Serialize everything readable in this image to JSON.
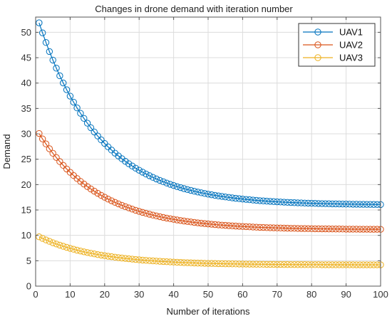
{
  "chart_data": {
    "type": "line",
    "title": "Changes in drone demand with iteration number",
    "xlabel": "Number of iterations",
    "ylabel": "Demand",
    "xlim": [
      0,
      100
    ],
    "ylim": [
      0,
      53
    ],
    "xticks": [
      0,
      10,
      20,
      30,
      40,
      50,
      60,
      70,
      80,
      90,
      100
    ],
    "yticks": [
      0,
      5,
      10,
      15,
      20,
      25,
      30,
      35,
      40,
      45,
      50
    ],
    "grid": true,
    "legend_position": "top-right",
    "marker": "open-circle",
    "x": [
      1,
      2,
      3,
      4,
      5,
      6,
      7,
      8,
      9,
      10,
      11,
      12,
      13,
      14,
      15,
      16,
      17,
      18,
      19,
      20,
      21,
      22,
      23,
      24,
      25,
      26,
      27,
      28,
      29,
      30,
      31,
      32,
      33,
      34,
      35,
      36,
      37,
      38,
      39,
      40,
      41,
      42,
      43,
      44,
      45,
      46,
      47,
      48,
      49,
      50,
      51,
      52,
      53,
      54,
      55,
      56,
      57,
      58,
      59,
      60,
      61,
      62,
      63,
      64,
      65,
      66,
      67,
      68,
      69,
      70,
      71,
      72,
      73,
      74,
      75,
      76,
      77,
      78,
      79,
      80,
      81,
      82,
      83,
      84,
      85,
      86,
      87,
      88,
      89,
      90,
      91,
      92,
      93,
      94,
      95,
      96,
      97,
      98,
      99,
      100
    ],
    "series": [
      {
        "name": "UAV1",
        "color": "#0072BD",
        "values": [
          51.86,
          49.89,
          47.99,
          46.21,
          44.53,
          42.94,
          41.44,
          40.02,
          38.69,
          37.43,
          36.24,
          35.11,
          34.05,
          33.05,
          32.1,
          31.21,
          30.37,
          29.57,
          28.82,
          28.11,
          27.44,
          26.8,
          26.2,
          25.64,
          25.1,
          24.59,
          24.11,
          23.66,
          23.23,
          22.83,
          22.45,
          22.09,
          21.75,
          21.42,
          21.12,
          20.83,
          20.56,
          20.3,
          20.06,
          19.83,
          19.61,
          19.41,
          19.21,
          19.03,
          18.86,
          18.69,
          18.54,
          18.39,
          18.25,
          18.12,
          18.0,
          17.88,
          17.77,
          17.67,
          17.57,
          17.48,
          17.39,
          17.3,
          17.23,
          17.15,
          17.08,
          17.02,
          16.95,
          16.9,
          16.84,
          16.79,
          16.74,
          16.7,
          16.65,
          16.61,
          16.57,
          16.54,
          16.5,
          16.47,
          16.44,
          16.42,
          16.39,
          16.36,
          16.34,
          16.32,
          16.3,
          16.28,
          16.26,
          16.24,
          16.23,
          16.21,
          16.2,
          16.19,
          16.17,
          16.16,
          16.15,
          16.14,
          16.13,
          16.12,
          16.11,
          16.1,
          16.1,
          16.09,
          16.08,
          16.07
        ]
      },
      {
        "name": "UAV2",
        "color": "#D95319",
        "values": [
          30.07,
          29.0,
          28.01,
          27.06,
          26.17,
          25.33,
          24.54,
          23.79,
          23.08,
          22.42,
          21.79,
          21.2,
          20.64,
          20.11,
          19.61,
          19.14,
          18.7,
          18.28,
          17.88,
          17.51,
          17.15,
          16.82,
          16.5,
          16.21,
          15.92,
          15.66,
          15.41,
          15.17,
          14.94,
          14.73,
          14.53,
          14.34,
          14.16,
          13.99,
          13.83,
          13.68,
          13.53,
          13.4,
          13.27,
          13.15,
          13.04,
          12.93,
          12.83,
          12.73,
          12.64,
          12.55,
          12.47,
          12.39,
          12.32,
          12.25,
          12.19,
          12.13,
          12.07,
          12.02,
          11.97,
          11.92,
          11.87,
          11.83,
          11.79,
          11.75,
          11.71,
          11.68,
          11.64,
          11.61,
          11.58,
          11.56,
          11.53,
          11.51,
          11.49,
          11.47,
          11.45,
          11.43,
          11.41,
          11.39,
          11.38,
          11.36,
          11.35,
          11.34,
          11.33,
          11.31,
          11.3,
          11.29,
          11.28,
          11.28,
          11.27,
          11.26,
          11.25,
          11.25,
          11.24,
          11.23,
          11.23,
          11.22,
          11.22,
          11.21,
          11.21,
          11.21,
          11.2,
          11.2,
          11.2,
          11.19
        ]
      },
      {
        "name": "UAV3",
        "color": "#EDB120",
        "values": [
          9.72,
          9.4,
          9.1,
          8.82,
          8.55,
          8.3,
          8.07,
          7.85,
          7.64,
          7.44,
          7.26,
          7.08,
          6.92,
          6.76,
          6.62,
          6.48,
          6.35,
          6.22,
          6.11,
          6.0,
          5.89,
          5.8,
          5.71,
          5.62,
          5.54,
          5.46,
          5.39,
          5.32,
          5.25,
          5.19,
          5.13,
          5.08,
          5.02,
          4.98,
          4.93,
          4.89,
          4.85,
          4.81,
          4.77,
          4.74,
          4.7,
          4.67,
          4.64,
          4.62,
          4.59,
          4.57,
          4.54,
          4.52,
          4.5,
          4.48,
          4.47,
          4.45,
          4.43,
          4.42,
          4.4,
          4.39,
          4.38,
          4.37,
          4.36,
          4.35,
          4.34,
          4.33,
          4.32,
          4.31,
          4.3,
          4.3,
          4.29,
          4.28,
          4.28,
          4.27,
          4.27,
          4.26,
          4.26,
          4.25,
          4.25,
          4.24,
          4.24,
          4.24,
          4.23,
          4.23,
          4.23,
          4.23,
          4.22,
          4.22,
          4.22,
          4.22,
          4.21,
          4.21,
          4.21,
          4.21,
          4.21,
          4.21,
          4.2,
          4.2,
          4.2,
          4.2,
          4.2,
          4.2,
          4.2,
          4.2
        ]
      }
    ]
  }
}
